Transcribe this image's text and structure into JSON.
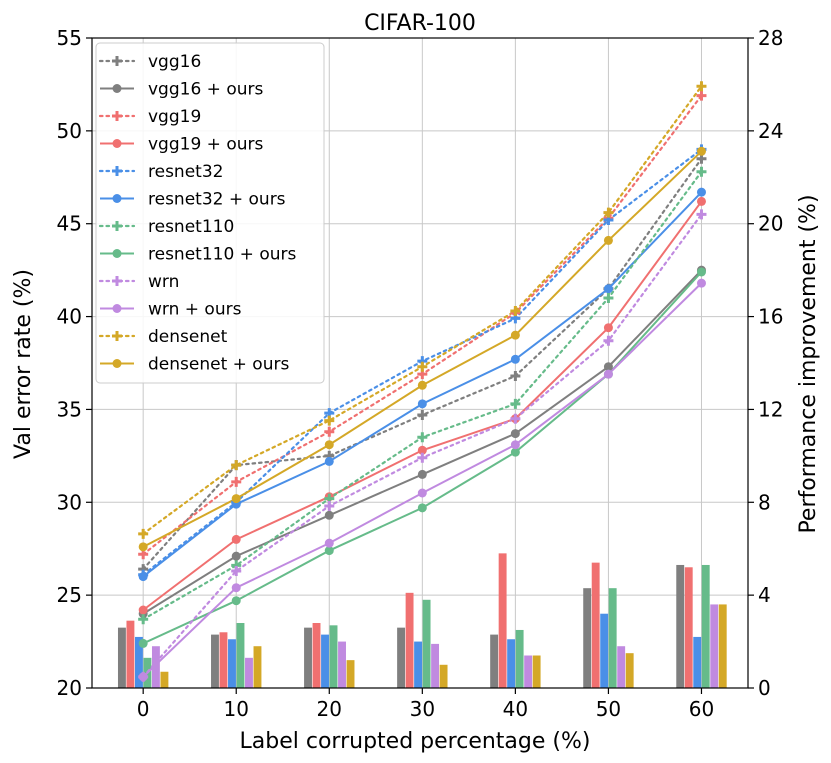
{
  "chart_data": {
    "type": "bar+line",
    "title": "CIFAR-100",
    "xlabel": "Label corrupted percentage (%)",
    "ylabel": "Val error rate (%)",
    "y2label": "Performance improvement (%)",
    "x": [
      0,
      10,
      20,
      30,
      40,
      50,
      60
    ],
    "xlim": [
      -5.5,
      65
    ],
    "ylim": [
      20,
      55
    ],
    "y2lim": [
      0,
      28
    ],
    "xticks": [
      0,
      10,
      20,
      30,
      40,
      50,
      60
    ],
    "yticks": [
      20,
      25,
      30,
      35,
      40,
      45,
      50,
      55
    ],
    "y2ticks": [
      0,
      4,
      8,
      12,
      16,
      20,
      24,
      28
    ],
    "grid": true,
    "legend_position": "top-left",
    "models": [
      {
        "name": "vgg16",
        "color": "#7f7f7f",
        "baseline_label": "vgg16",
        "ours_label": "vgg16 + ours",
        "baseline": [
          26.4,
          32.0,
          32.5,
          34.7,
          36.8,
          41.5,
          48.5
        ],
        "ours": [
          24.0,
          27.1,
          29.3,
          31.5,
          33.7,
          37.3,
          42.5
        ],
        "improvement": [
          2.6,
          2.3,
          2.6,
          2.6,
          2.3,
          4.3,
          5.3
        ]
      },
      {
        "name": "vgg19",
        "color": "#f07070",
        "baseline_label": "vgg19",
        "ours_label": "vgg19 + ours",
        "baseline": [
          27.2,
          31.1,
          33.8,
          36.9,
          40.2,
          45.3,
          51.9
        ],
        "ours": [
          24.2,
          28.0,
          30.3,
          32.8,
          34.5,
          39.4,
          46.2
        ],
        "improvement": [
          2.9,
          2.4,
          2.8,
          4.1,
          5.8,
          5.4,
          5.2
        ]
      },
      {
        "name": "resnet32",
        "color": "#4a8fe7",
        "baseline_label": "resnet32",
        "ours_label": "resnet32 + ours",
        "baseline": [
          26.1,
          30.0,
          34.8,
          37.6,
          39.9,
          45.2,
          49.0
        ],
        "ours": [
          26.0,
          29.9,
          32.2,
          35.3,
          37.7,
          41.5,
          46.7
        ],
        "improvement": [
          2.2,
          2.1,
          2.3,
          2.0,
          2.1,
          3.2,
          2.2
        ]
      },
      {
        "name": "resnet110",
        "color": "#66bb8a",
        "baseline_label": "resnet110",
        "ours_label": "resnet110 + ours",
        "baseline": [
          23.7,
          26.6,
          30.2,
          33.5,
          35.3,
          41.0,
          47.8
        ],
        "ours": [
          22.4,
          24.7,
          27.4,
          29.7,
          32.7,
          36.9,
          42.4
        ],
        "improvement": [
          1.3,
          2.8,
          2.7,
          3.8,
          2.5,
          4.3,
          5.3
        ]
      },
      {
        "name": "wrn",
        "color": "#c08ae0",
        "baseline_label": "wrn",
        "ours_label": "wrn + ours",
        "baseline": [
          20.6,
          26.3,
          29.8,
          32.4,
          34.5,
          38.7,
          45.5
        ],
        "ours": [
          20.6,
          25.4,
          27.8,
          30.5,
          33.1,
          36.9,
          41.8
        ],
        "improvement": [
          1.8,
          1.3,
          2.0,
          1.9,
          1.4,
          1.8,
          3.6
        ]
      },
      {
        "name": "densenet",
        "color": "#d4a827",
        "baseline_label": "densenet",
        "ours_label": "densenet + ours",
        "baseline": [
          28.3,
          32.0,
          34.4,
          37.3,
          40.3,
          45.6,
          52.4
        ],
        "ours": [
          27.6,
          30.2,
          33.1,
          36.3,
          39.0,
          44.1,
          48.9
        ],
        "improvement": [
          0.7,
          1.8,
          1.2,
          1.0,
          1.4,
          1.5,
          3.6
        ]
      }
    ]
  }
}
